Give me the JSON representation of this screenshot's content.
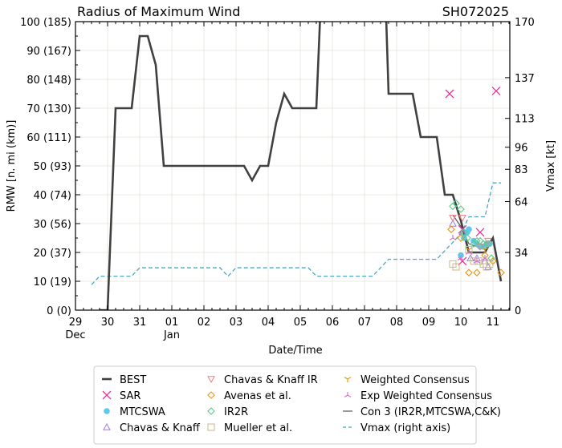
{
  "chart_data": {
    "type": "line",
    "title": "Radius of Maximum Wind",
    "title_right": "SH072025",
    "xlabel": "Date/Time",
    "ylabel": "RMW [n. mi (km)]",
    "y2label": "Vmax [kt]",
    "grid": true,
    "xlim_days": [
      0,
      13.5
    ],
    "ylim": [
      0,
      100
    ],
    "y2lim": [
      0,
      170
    ],
    "x_ticks": [
      {
        "day": 0,
        "label": "29",
        "sublabel": "Dec"
      },
      {
        "day": 1,
        "label": "30",
        "sublabel": ""
      },
      {
        "day": 2,
        "label": "31",
        "sublabel": ""
      },
      {
        "day": 3,
        "label": "01",
        "sublabel": "Jan"
      },
      {
        "day": 4,
        "label": "02",
        "sublabel": ""
      },
      {
        "day": 5,
        "label": "03",
        "sublabel": ""
      },
      {
        "day": 6,
        "label": "04",
        "sublabel": ""
      },
      {
        "day": 7,
        "label": "05",
        "sublabel": ""
      },
      {
        "day": 8,
        "label": "06",
        "sublabel": ""
      },
      {
        "day": 9,
        "label": "07",
        "sublabel": ""
      },
      {
        "day": 10,
        "label": "08",
        "sublabel": ""
      },
      {
        "day": 11,
        "label": "09",
        "sublabel": ""
      },
      {
        "day": 12,
        "label": "10",
        "sublabel": ""
      },
      {
        "day": 13,
        "label": "11",
        "sublabel": ""
      }
    ],
    "y_ticks": [
      {
        "value": 0,
        "label": "0 (0)"
      },
      {
        "value": 10,
        "label": "10 (19)"
      },
      {
        "value": 20,
        "label": "20 (37)"
      },
      {
        "value": 30,
        "label": "30 (56)"
      },
      {
        "value": 40,
        "label": "40 (74)"
      },
      {
        "value": 50,
        "label": "50 (93)"
      },
      {
        "value": 60,
        "label": "60 (111)"
      },
      {
        "value": 70,
        "label": "70 (130)"
      },
      {
        "value": 80,
        "label": "80 (148)"
      },
      {
        "value": 90,
        "label": "90 (167)"
      },
      {
        "value": 100,
        "label": "100 (185)"
      }
    ],
    "y2_ticks": [
      {
        "value": 0,
        "label": "0"
      },
      {
        "value": 34,
        "label": "34"
      },
      {
        "value": 64,
        "label": "64"
      },
      {
        "value": 83,
        "label": "83"
      },
      {
        "value": 96,
        "label": "96"
      },
      {
        "value": 113,
        "label": "113"
      },
      {
        "value": 137,
        "label": "137"
      },
      {
        "value": 170,
        "label": "170"
      }
    ],
    "series": [
      {
        "name": "BEST",
        "kind": "line",
        "color": "#404040",
        "x": [
          0.75,
          1.0,
          1.25,
          1.75,
          2.0,
          2.25,
          2.5,
          2.75,
          5.25,
          5.5,
          5.75,
          6.0,
          6.25,
          6.5,
          6.75,
          7.5,
          7.65,
          9.65,
          9.75,
          10.5,
          10.75,
          11.25,
          11.5,
          11.75,
          12.0,
          12.25,
          12.75,
          13.0,
          13.25
        ],
        "y": [
          0,
          0,
          70,
          70,
          95,
          95,
          85,
          50,
          50,
          45,
          50,
          50,
          65,
          75,
          70,
          70,
          110,
          110,
          75,
          75,
          60,
          60,
          40,
          40,
          31,
          20,
          20,
          25,
          10
        ]
      },
      {
        "name": "SAR",
        "kind": "marker",
        "marker": "x",
        "color": "#e8349c",
        "x": [
          11.65,
          13.1,
          12.05,
          12.05,
          12.6
        ],
        "y": [
          75,
          76,
          28,
          17,
          27
        ]
      },
      {
        "name": "MTCSWA",
        "kind": "marker",
        "marker": "circle",
        "color": "#5bc8ee",
        "x": [
          12.0,
          12.1,
          12.2,
          12.25,
          12.4,
          12.5,
          12.6,
          12.7,
          12.8,
          12.9
        ],
        "y": [
          19,
          25,
          27,
          28,
          24,
          23,
          22,
          22,
          23,
          23
        ]
      },
      {
        "name": "Chavas & Knaff",
        "kind": "marker",
        "marker": "triangle-up",
        "color": "#9b7fd6",
        "x": [
          11.75,
          12.05,
          12.3,
          12.5,
          12.75,
          12.85
        ],
        "y": [
          30,
          27,
          18,
          18,
          17,
          15
        ]
      },
      {
        "name": "Chavas & Knaff IR",
        "kind": "marker",
        "marker": "triangle-down",
        "color": "#f07c82",
        "x": [
          11.75,
          12.05,
          12.6,
          12.85
        ],
        "y": [
          32,
          32,
          22,
          24
        ]
      },
      {
        "name": "Avenas et al.",
        "kind": "marker",
        "marker": "diamond",
        "color": "#e8961a",
        "x": [
          11.7,
          12.0,
          12.25,
          12.5,
          12.75,
          13.0,
          13.25
        ],
        "y": [
          28,
          25,
          13,
          13,
          19,
          17,
          13
        ]
      },
      {
        "name": "IR2R",
        "kind": "marker",
        "marker": "diamond",
        "color": "#5cc98c",
        "x": [
          11.75,
          11.85,
          12.0,
          12.1,
          12.2,
          12.4,
          12.5,
          12.6,
          12.7,
          12.85,
          12.95
        ],
        "y": [
          36,
          37,
          35,
          27,
          25,
          23,
          24,
          24,
          23,
          23,
          18
        ]
      },
      {
        "name": "Mueller et al.",
        "kind": "marker",
        "marker": "square",
        "color": "#c8b882",
        "x": [
          11.75,
          11.85,
          12.25,
          12.4,
          12.55,
          12.7,
          12.8,
          12.9
        ],
        "y": [
          16,
          15,
          21,
          17,
          17,
          16,
          15,
          16
        ]
      },
      {
        "name": "Weighted Consensus",
        "kind": "marker",
        "marker": "tri-down",
        "color": "#d89a1a",
        "x": [
          12.25,
          12.75
        ],
        "y": [
          21,
          21
        ]
      },
      {
        "name": "Exp Weighted Consensus",
        "kind": "marker",
        "marker": "tri-up",
        "color": "#e070c8",
        "x": [
          11.75,
          12.0,
          12.25,
          12.5,
          12.75
        ],
        "y": [
          25,
          18,
          20,
          17,
          18
        ]
      },
      {
        "name": "Con 3 (IR2R,MTCSWA,C&K)",
        "kind": "line",
        "color": "#555555",
        "x": [
          11.75,
          12.0,
          12.25,
          12.5,
          12.75
        ],
        "y": [
          33,
          29,
          23,
          22,
          21
        ]
      },
      {
        "name": "Vmax (right axis)",
        "kind": "dashed-line",
        "axis": "right",
        "color": "#4aa8c0",
        "x": [
          0.5,
          0.75,
          1.0,
          1.75,
          2.0,
          4.5,
          4.75,
          5.0,
          7.25,
          7.5,
          9.25,
          9.75,
          11.25,
          11.75,
          12.0,
          12.25,
          12.75,
          13.0,
          13.25
        ],
        "y": [
          15,
          20,
          20,
          20,
          25,
          25,
          20,
          25,
          25,
          20,
          20,
          30,
          30,
          40,
          45,
          55,
          55,
          75,
          75
        ]
      }
    ],
    "legend": {
      "placement": "bottom",
      "columns": [
        [
          "BEST",
          "SAR",
          "MTCSWA",
          "Chavas & Knaff"
        ],
        [
          "Chavas & Knaff IR",
          "Avenas et al.",
          "IR2R",
          "Mueller et al."
        ],
        [
          "Weighted Consensus",
          "Exp Weighted Consensus",
          "Con 3 (IR2R,MTCSWA,C&K)",
          "Vmax (right axis)"
        ]
      ]
    }
  }
}
